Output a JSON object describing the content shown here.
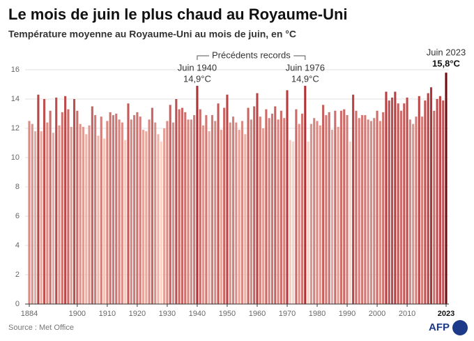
{
  "chart_data": {
    "type": "bar",
    "title": "Le mois de juin le plus chaud au Royaume-Uni",
    "subtitle": "Température moyenne au Royaume-Uni au mois de juin, en °C",
    "source": "Source : Met Office",
    "logo": "AFP",
    "x": [
      1884,
      1885,
      1886,
      1887,
      1888,
      1889,
      1890,
      1891,
      1892,
      1893,
      1894,
      1895,
      1896,
      1897,
      1898,
      1899,
      1900,
      1901,
      1902,
      1903,
      1904,
      1905,
      1906,
      1907,
      1908,
      1909,
      1910,
      1911,
      1912,
      1913,
      1914,
      1915,
      1916,
      1917,
      1918,
      1919,
      1920,
      1921,
      1922,
      1923,
      1924,
      1925,
      1926,
      1927,
      1928,
      1929,
      1930,
      1931,
      1932,
      1933,
      1934,
      1935,
      1936,
      1937,
      1938,
      1939,
      1940,
      1941,
      1942,
      1943,
      1944,
      1945,
      1946,
      1947,
      1948,
      1949,
      1950,
      1951,
      1952,
      1953,
      1954,
      1955,
      1956,
      1957,
      1958,
      1959,
      1960,
      1961,
      1962,
      1963,
      1964,
      1965,
      1966,
      1967,
      1968,
      1969,
      1970,
      1971,
      1972,
      1973,
      1974,
      1975,
      1976,
      1977,
      1978,
      1979,
      1980,
      1981,
      1982,
      1983,
      1984,
      1985,
      1986,
      1987,
      1988,
      1989,
      1990,
      1991,
      1992,
      1993,
      1994,
      1995,
      1996,
      1997,
      1998,
      1999,
      2000,
      2001,
      2002,
      2003,
      2004,
      2005,
      2006,
      2007,
      2008,
      2009,
      2010,
      2011,
      2012,
      2013,
      2014,
      2015,
      2016,
      2017,
      2018,
      2019,
      2020,
      2021,
      2022,
      2023
    ],
    "values": [
      12.5,
      12.3,
      11.8,
      14.3,
      11.8,
      14.0,
      12.4,
      13.2,
      11.7,
      14.1,
      12.2,
      13.1,
      14.2,
      13.3,
      12.1,
      14.0,
      13.2,
      12.3,
      12.1,
      11.6,
      12.2,
      13.5,
      12.9,
      11.5,
      12.8,
      11.3,
      12.5,
      13.1,
      12.9,
      13.0,
      12.6,
      12.4,
      11.2,
      13.7,
      12.6,
      12.9,
      13.1,
      12.8,
      11.9,
      11.8,
      12.6,
      13.4,
      12.4,
      11.6,
      11.1,
      12.0,
      12.5,
      13.6,
      12.4,
      14.0,
      13.3,
      13.4,
      13.1,
      12.6,
      12.6,
      12.9,
      14.9,
      13.3,
      12.2,
      12.9,
      11.8,
      12.9,
      12.5,
      13.7,
      11.9,
      13.4,
      14.3,
      12.4,
      12.8,
      12.4,
      11.9,
      12.5,
      11.6,
      13.4,
      12.6,
      13.5,
      14.4,
      12.8,
      12.0,
      13.3,
      12.7,
      13.0,
      13.5,
      12.6,
      13.2,
      12.7,
      14.6,
      11.2,
      11.1,
      13.3,
      12.3,
      13.0,
      14.9,
      11.1,
      12.3,
      12.7,
      12.5,
      12.2,
      13.6,
      12.9,
      13.1,
      11.9,
      13.2,
      12.1,
      13.2,
      13.3,
      12.9,
      11.1,
      14.3,
      13.2,
      12.7,
      12.9,
      12.9,
      12.6,
      12.5,
      12.7,
      13.2,
      12.5,
      13.1,
      14.5,
      13.9,
      14.1,
      14.5,
      13.7,
      13.2,
      13.7,
      14.1,
      12.6,
      12.3,
      12.8,
      14.2,
      12.8,
      13.9,
      14.4,
      14.8,
      13.2,
      14.0,
      14.2,
      13.9,
      15.8
    ],
    "color_range": [
      "#fbd3c4",
      "#a3121a"
    ],
    "highlight_color": "#6e0b0f",
    "xlim": [
      1884,
      2023
    ],
    "xticks": [
      1884,
      1900,
      1910,
      1920,
      1930,
      1940,
      1950,
      1960,
      1970,
      1980,
      1990,
      2000,
      2010,
      2023
    ],
    "ylim": [
      0,
      16
    ],
    "yticks": [
      0,
      2,
      4,
      6,
      8,
      10,
      12,
      14,
      16
    ],
    "grid": true,
    "annotations": [
      {
        "x": 1940,
        "label": "Juin 1940",
        "value_label": "14,9°C"
      },
      {
        "x": 1976,
        "label": "Juin 1976",
        "value_label": "14,9°C"
      },
      {
        "x": 2023,
        "label": "Juin 2023",
        "value_label": "15,8°C"
      }
    ],
    "bracket": {
      "label": "Précédents records",
      "x": [
        1940,
        1976
      ]
    }
  }
}
